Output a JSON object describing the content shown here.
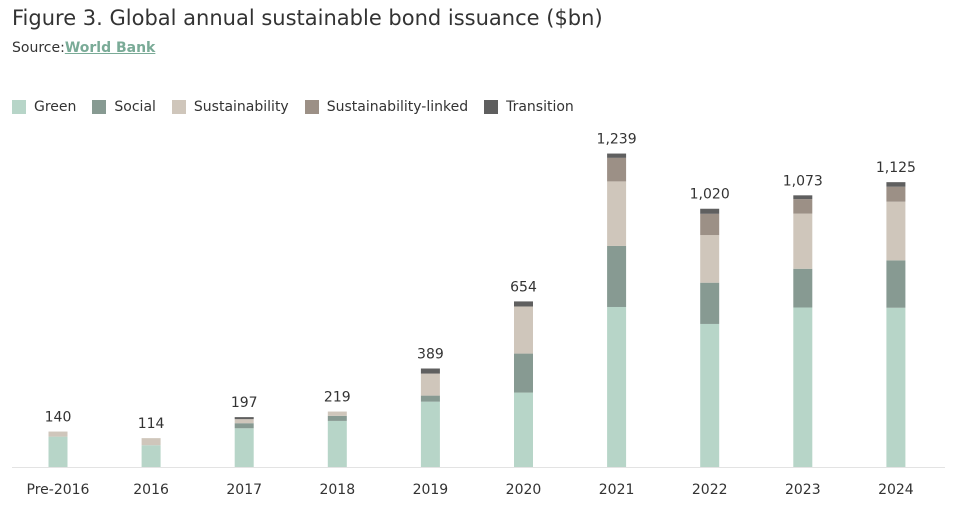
{
  "chart_data": {
    "type": "bar",
    "stacked": true,
    "title": "Figure 3. Global annual sustainable bond issuance ($bn)",
    "source_label": "Source:",
    "source_link": "World Bank",
    "categories": [
      "Pre-2016",
      "2016",
      "2017",
      "2018",
      "2019",
      "2020",
      "2021",
      "2022",
      "2023",
      "2024"
    ],
    "totals": [
      "140",
      "114",
      "197",
      "219",
      "389",
      "654",
      "1,239",
      "1,020",
      "1,073",
      "1,125"
    ],
    "series": [
      {
        "name": "Green",
        "color": "#b7d5c8",
        "values": [
          120,
          86,
          153,
          182,
          258,
          294,
          632,
          565,
          630,
          629
        ]
      },
      {
        "name": "Social",
        "color": "#879a92",
        "values": [
          0,
          0,
          20,
          20,
          24,
          154,
          241,
          163,
          153,
          187
        ]
      },
      {
        "name": "Sustainability",
        "color": "#cfc6bb",
        "values": [
          20,
          28,
          16,
          17,
          87,
          186,
          255,
          188,
          218,
          232
        ]
      },
      {
        "name": "Sustainability-linked",
        "color": "#9c9086",
        "values": [
          0,
          0,
          0,
          0,
          0,
          0,
          93,
          84,
          57,
          59
        ]
      },
      {
        "name": "Transition",
        "color": "#5f5f5f",
        "values": [
          0,
          0,
          8,
          0,
          20,
          20,
          17,
          20,
          15,
          18
        ]
      }
    ],
    "ylim": [
      0,
      1239
    ],
    "grid": false,
    "legend_position": "top-left"
  }
}
